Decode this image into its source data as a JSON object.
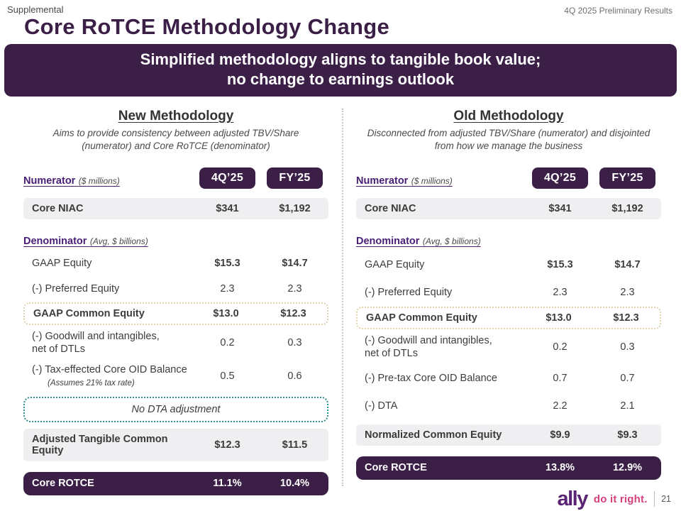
{
  "page": {
    "supplemental_label": "Supplemental",
    "corner_note": "4Q 2025 Preliminary Results",
    "title": "Core RoTCE Methodology Change",
    "page_number": "21"
  },
  "banner": {
    "line1": "Simplified methodology aligns to tangible book value;",
    "line2": "no change to earnings outlook"
  },
  "colors": {
    "dark_purple": "#3b1f47",
    "label_purple": "#4a2075",
    "row_gray": "#efeef0",
    "tan_dotted_border": "#ddd3ac",
    "teal_dotted_border": "#2e8f8f",
    "ally_purple": "#5b2373",
    "ally_pink": "#d6407d"
  },
  "new_methodology": {
    "heading": "New Methodology",
    "subtitle": "Aims to provide consistency between adjusted TBV/Share (numerator) and Core RoTCE (denominator)",
    "numerator_label": "Numerator",
    "numerator_note": "($ millions)",
    "col1": "4Q’25",
    "col2": "FY’25",
    "niac_row": {
      "label": "Core NIAC",
      "v1": "$341",
      "v2": "$1,192"
    },
    "denominator_label": "Denominator",
    "denominator_note": "(Avg, $ billions)",
    "body_rows": [
      {
        "label": "GAAP Equity",
        "v1": "$15.3",
        "v2": "$14.7"
      },
      {
        "label": "(-) Preferred Equity",
        "v1": "2.3",
        "v2": "2.3"
      },
      {
        "label": "GAAP Common Equity",
        "v1": "$13.0",
        "v2": "$12.3"
      },
      {
        "label": "(-) Goodwill and intangibles,",
        "label2": "net of DTLs",
        "v1": "0.2",
        "v2": "0.3"
      },
      {
        "label": "(-) Tax-effected Core OID Balance",
        "sublabel": "(Assumes 21% tax rate)",
        "v1": "0.5",
        "v2": "0.6"
      }
    ],
    "note_box": "No DTA adjustment",
    "total_row": {
      "label": "Adjusted Tangible Common Equity",
      "v1": "$12.3",
      "v2": "$11.5"
    },
    "rotce_row": {
      "label": "Core ROTCE",
      "v1": "11.1%",
      "v2": "10.4%"
    }
  },
  "old_methodology": {
    "heading": "Old Methodology",
    "subtitle": "Disconnected from adjusted TBV/Share (numerator) and disjointed from how we manage the business",
    "numerator_label": "Numerator",
    "numerator_note": "($ millions)",
    "col1": "4Q’25",
    "col2": "FY’25",
    "niac_row": {
      "label": "Core NIAC",
      "v1": "$341",
      "v2": "$1,192"
    },
    "denominator_label": "Denominator",
    "denominator_note": "(Avg, $ billions)",
    "body_rows": [
      {
        "label": "GAAP Equity",
        "v1": "$15.3",
        "v2": "$14.7"
      },
      {
        "label": "(-) Preferred Equity",
        "v1": "2.3",
        "v2": "2.3"
      },
      {
        "label": "GAAP Common Equity",
        "v1": "$13.0",
        "v2": "$12.3"
      },
      {
        "label": "(-) Goodwill and intangibles,",
        "label2": "net of DTLs",
        "v1": "0.2",
        "v2": "0.3"
      },
      {
        "label": "(-) Pre-tax Core OID Balance",
        "v1": "0.7",
        "v2": "0.7"
      },
      {
        "label": "(-) DTA",
        "v1": "2.2",
        "v2": "2.1"
      }
    ],
    "total_row": {
      "label": "Normalized Common Equity",
      "v1": "$9.9",
      "v2": "$9.3"
    },
    "rotce_row": {
      "label": "Core ROTCE",
      "v1": "13.8%",
      "v2": "12.9%"
    }
  },
  "footer": {
    "logo_text": "ally",
    "tagline": "do it right."
  }
}
